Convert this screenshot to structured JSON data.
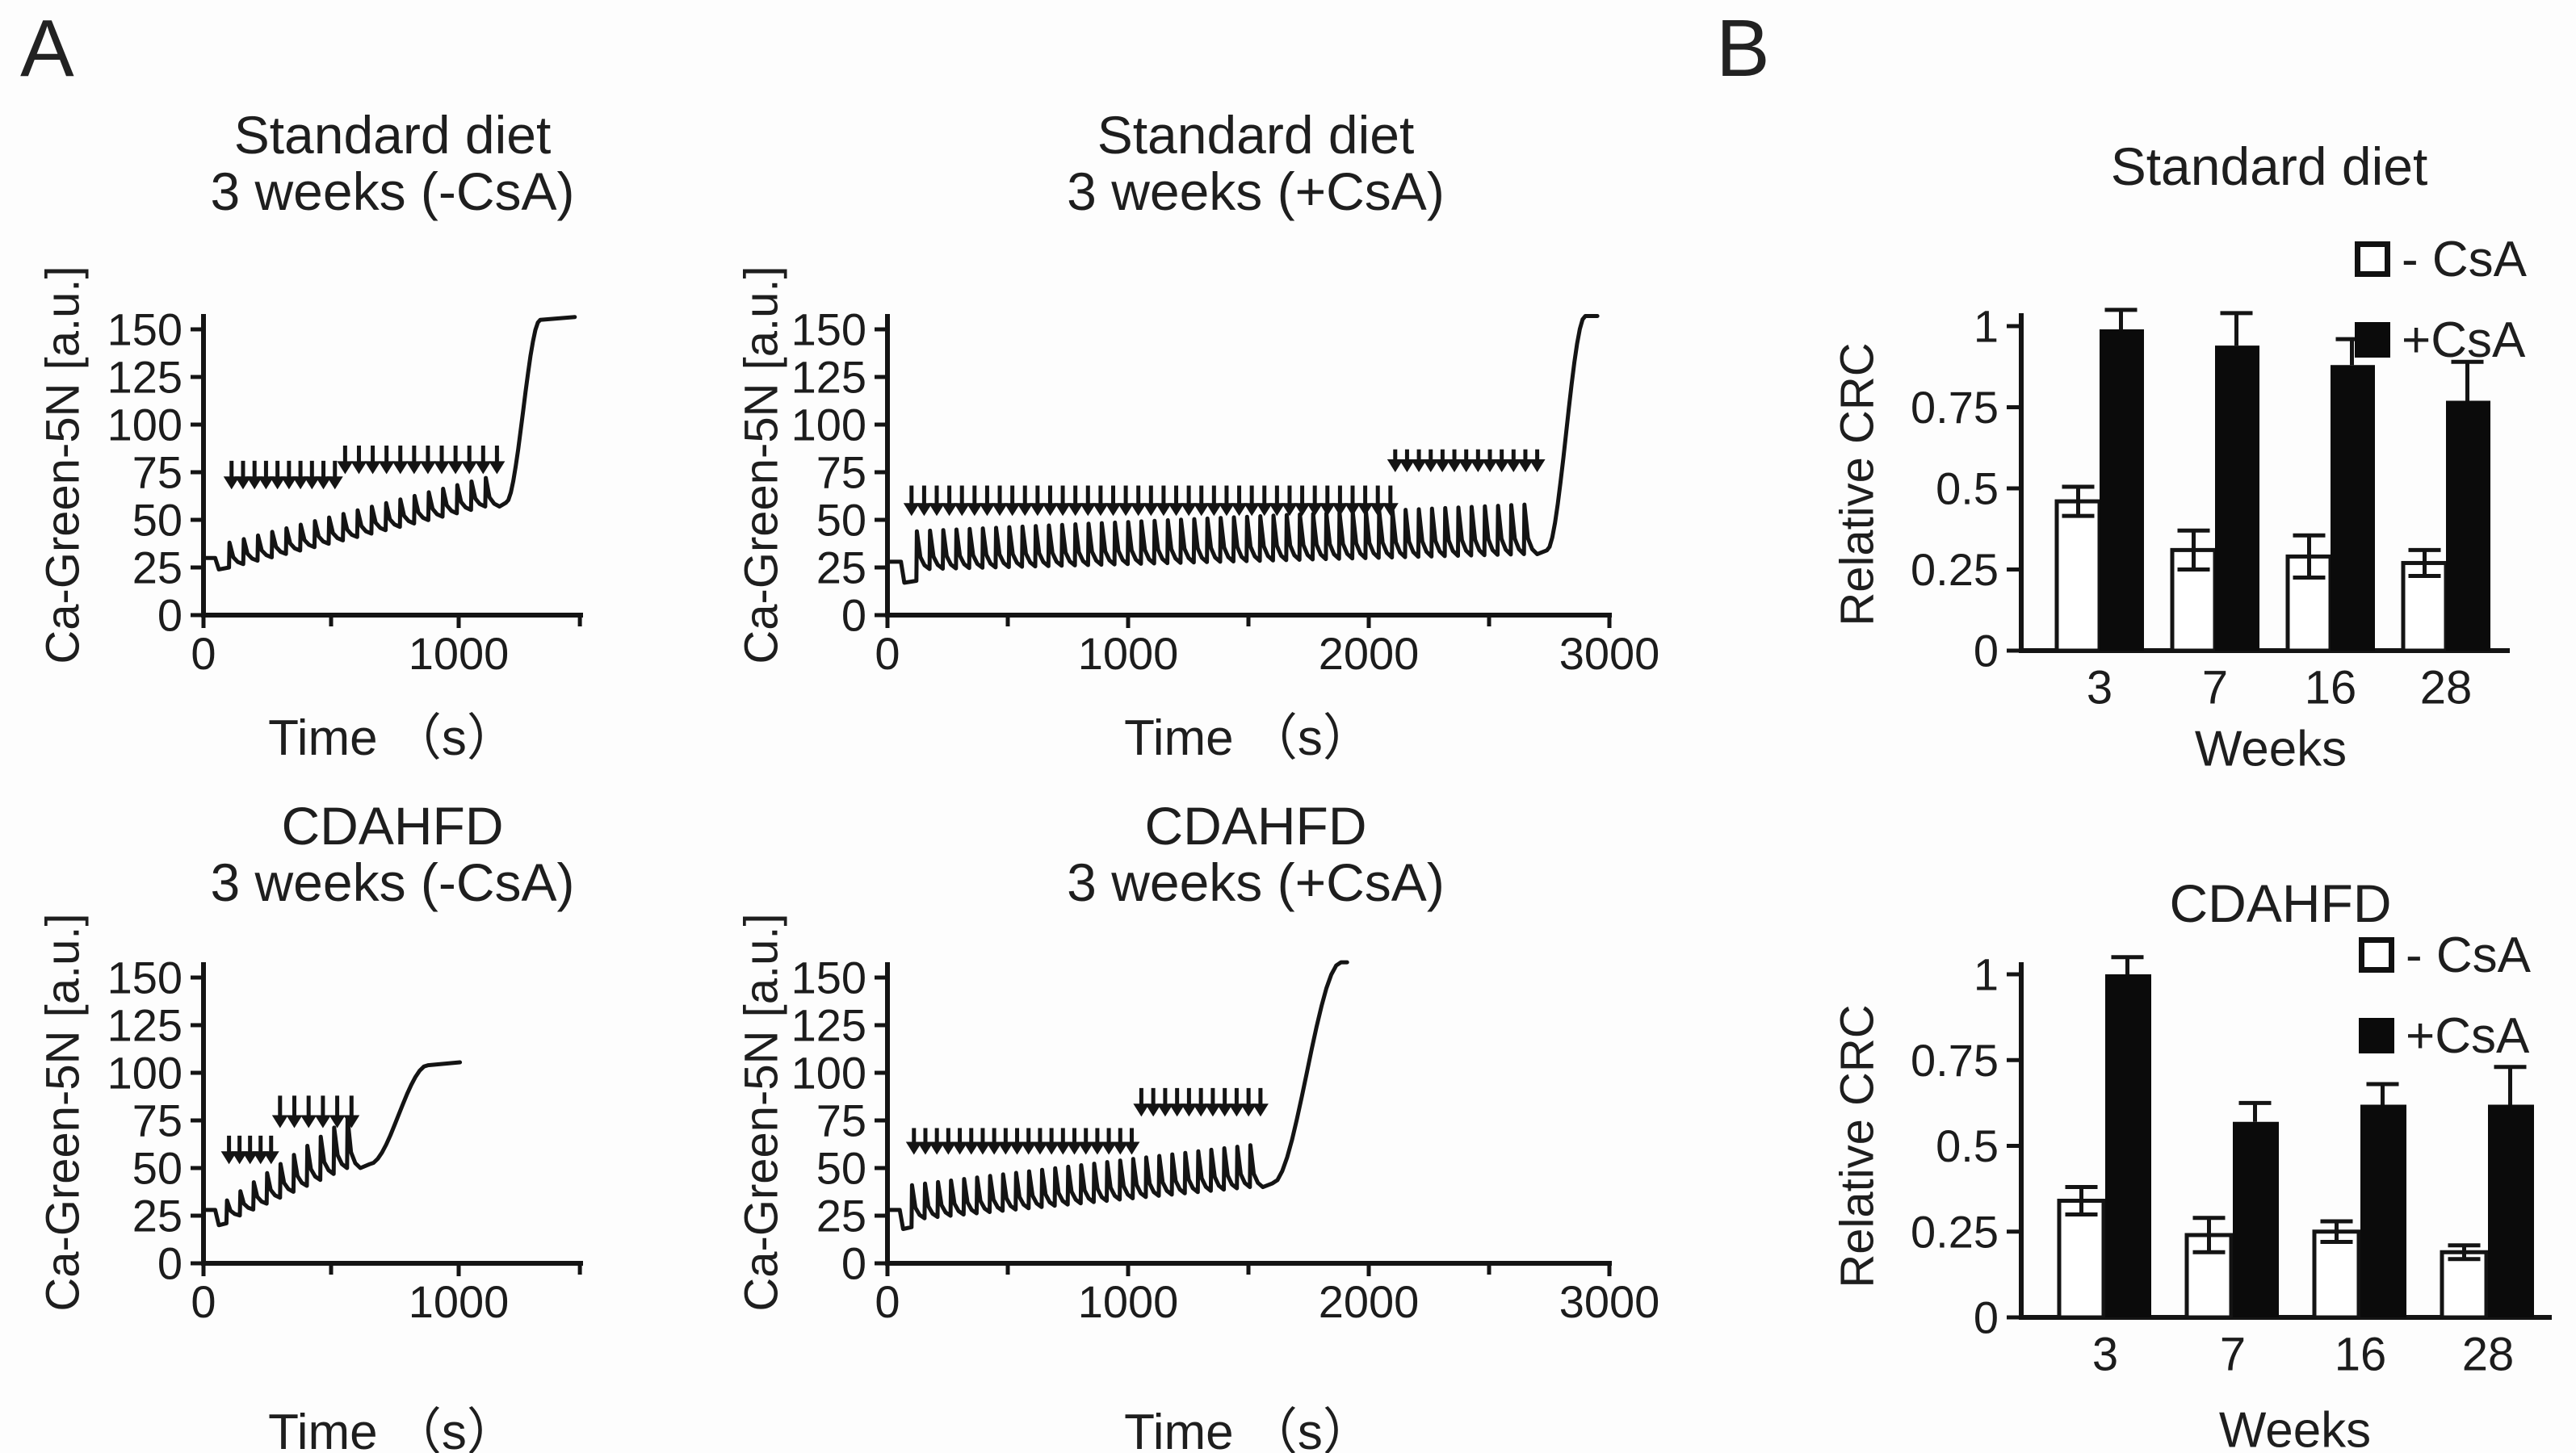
{
  "panels": {
    "a": {
      "label": "A"
    },
    "b": {
      "label": "B"
    }
  },
  "ink_color": "#141414",
  "background_color": "#fdfdfd",
  "chart_data": [
    {
      "type": "line",
      "title_lines": [
        "Standard diet",
        "3 weeks (-CsA)"
      ],
      "xlabel": "Time （s）",
      "ylabel": "Ca-Green-5N [a.u.]",
      "xlim": [
        0,
        1480
      ],
      "ylim": [
        0,
        158
      ],
      "xticks": [
        0,
        1000
      ],
      "xticks_minor": [
        500,
        1475
      ],
      "yticks": [
        0,
        25,
        50,
        75,
        100,
        125,
        150
      ],
      "trace": {
        "start_value": 30,
        "dip_t": 60,
        "dip_value": 24,
        "pulse_start": 100,
        "pulse_end": 1160,
        "pulse_count": 19,
        "base_from": 25,
        "base_to": 57,
        "peak_from": 38,
        "peak_to": 72,
        "rise_start": 1185,
        "rise_end": 1320,
        "rise_to": 155,
        "trace_end": 1455,
        "plateau": true
      },
      "arrow_rows": [
        {
          "t_start": 110,
          "t_end": 515,
          "count": 10,
          "tip_value": 66,
          "tail_value": 81
        },
        {
          "t_start": 555,
          "t_end": 1150,
          "count": 12,
          "tip_value": 74,
          "tail_value": 89
        }
      ]
    },
    {
      "type": "line",
      "title_lines": [
        "Standard diet",
        "3 weeks (+CsA)"
      ],
      "xlabel": "Time （s）",
      "ylabel": "Ca-Green-5N [a.u.]",
      "xlim": [
        0,
        3000
      ],
      "ylim": [
        0,
        158
      ],
      "xticks": [
        0,
        1000,
        2000,
        3000
      ],
      "xticks_minor": [
        500,
        1500,
        2500
      ],
      "yticks": [
        0,
        25,
        50,
        75,
        100,
        125,
        150
      ],
      "trace": {
        "start_value": 28,
        "dip_t": 70,
        "dip_value": 17,
        "pulse_start": 120,
        "pulse_end": 2700,
        "pulse_count": 47,
        "base_from": 24,
        "base_to": 32,
        "peak_from": 44,
        "peak_to": 58,
        "rise_start": 2740,
        "rise_end": 2900,
        "rise_to": 157,
        "trace_end": 2950,
        "plateau": false
      },
      "arrow_rows": [
        {
          "t_start": 100,
          "t_end": 2090,
          "count": 39,
          "tip_value": 52,
          "tail_value": 68
        },
        {
          "t_start": 2110,
          "t_end": 2700,
          "count": 13,
          "tip_value": 75,
          "tail_value": 87
        }
      ]
    },
    {
      "type": "line",
      "title_lines": [
        "CDAHFD",
        "3 weeks (-CsA)"
      ],
      "xlabel": "Time （s）",
      "ylabel": "Ca-Green-5N [a.u.]",
      "xlim": [
        0,
        1480
      ],
      "ylim": [
        0,
        158
      ],
      "xticks": [
        0,
        1000
      ],
      "xticks_minor": [
        500,
        1475
      ],
      "yticks": [
        0,
        25,
        50,
        75,
        100,
        125,
        150
      ],
      "trace": {
        "start_value": 28,
        "dip_t": 60,
        "dip_value": 20,
        "pulse_start": 90,
        "pulse_end": 615,
        "pulse_count": 10,
        "base_from": 22,
        "base_to": 50,
        "peak_from": 33,
        "peak_to": 76,
        "rise_start": 650,
        "rise_end": 880,
        "rise_to": 104,
        "trace_end": 1005,
        "plateau": true
      },
      "arrow_rows": [
        {
          "t_start": 100,
          "t_end": 265,
          "count": 5,
          "tip_value": 52,
          "tail_value": 67
        },
        {
          "t_start": 300,
          "t_end": 580,
          "count": 6,
          "tip_value": 71,
          "tail_value": 88
        }
      ]
    },
    {
      "type": "line",
      "title_lines": [
        "CDAHFD",
        "3 weeks (+CsA)"
      ],
      "xlabel": "Time （s）",
      "ylabel": "Ca-Green-5N [a.u.]",
      "xlim": [
        0,
        3000
      ],
      "ylim": [
        0,
        158
      ],
      "xticks": [
        0,
        1000,
        2000,
        3000
      ],
      "xticks_minor": [
        500,
        1500,
        2500
      ],
      "yticks": [
        0,
        25,
        50,
        75,
        100,
        125,
        150
      ],
      "trace": {
        "start_value": 28,
        "dip_t": 65,
        "dip_value": 18,
        "pulse_start": 100,
        "pulse_end": 1560,
        "pulse_count": 27,
        "base_from": 23,
        "base_to": 40,
        "peak_from": 41,
        "peak_to": 62,
        "rise_start": 1600,
        "rise_end": 1885,
        "rise_to": 158,
        "trace_end": 1910,
        "plateau": false
      },
      "arrow_rows": [
        {
          "t_start": 110,
          "t_end": 1015,
          "count": 20,
          "tip_value": 57,
          "tail_value": 71
        },
        {
          "t_start": 1055,
          "t_end": 1550,
          "count": 11,
          "tip_value": 77,
          "tail_value": 92
        }
      ]
    },
    {
      "type": "bar",
      "title": "Standard diet",
      "xlabel": "Weeks",
      "ylabel": "Relative CRC",
      "categories": [
        "3",
        "7",
        "16",
        "28"
      ],
      "yticks": [
        0,
        0.25,
        0.5,
        0.75,
        1
      ],
      "ylim": [
        0,
        1.08
      ],
      "series": [
        {
          "name": "- CsA",
          "fill": "white",
          "values": [
            0.46,
            0.31,
            0.29,
            0.27
          ],
          "errors": [
            0.045,
            0.06,
            0.065,
            0.04
          ]
        },
        {
          "name": "+CsA",
          "fill": "black",
          "values": [
            0.99,
            0.94,
            0.88,
            0.77
          ],
          "errors": [
            0.06,
            0.1,
            0.08,
            0.12
          ]
        }
      ],
      "legend_position": "upper-right"
    },
    {
      "type": "bar",
      "title": "CDAHFD",
      "xlabel": "Weeks",
      "ylabel": "Relative CRC",
      "categories": [
        "3",
        "7",
        "16",
        "28"
      ],
      "yticks": [
        0,
        0.25,
        0.5,
        0.75,
        1
      ],
      "ylim": [
        0,
        1.08
      ],
      "series": [
        {
          "name": "- CsA",
          "fill": "white",
          "values": [
            0.34,
            0.24,
            0.25,
            0.19
          ],
          "errors": [
            0.04,
            0.05,
            0.03,
            0.02
          ]
        },
        {
          "name": "+CsA",
          "fill": "black",
          "values": [
            1.0,
            0.57,
            0.62,
            0.62
          ],
          "errors": [
            0.05,
            0.055,
            0.06,
            0.11
          ]
        }
      ],
      "legend_position": "upper-right"
    }
  ]
}
